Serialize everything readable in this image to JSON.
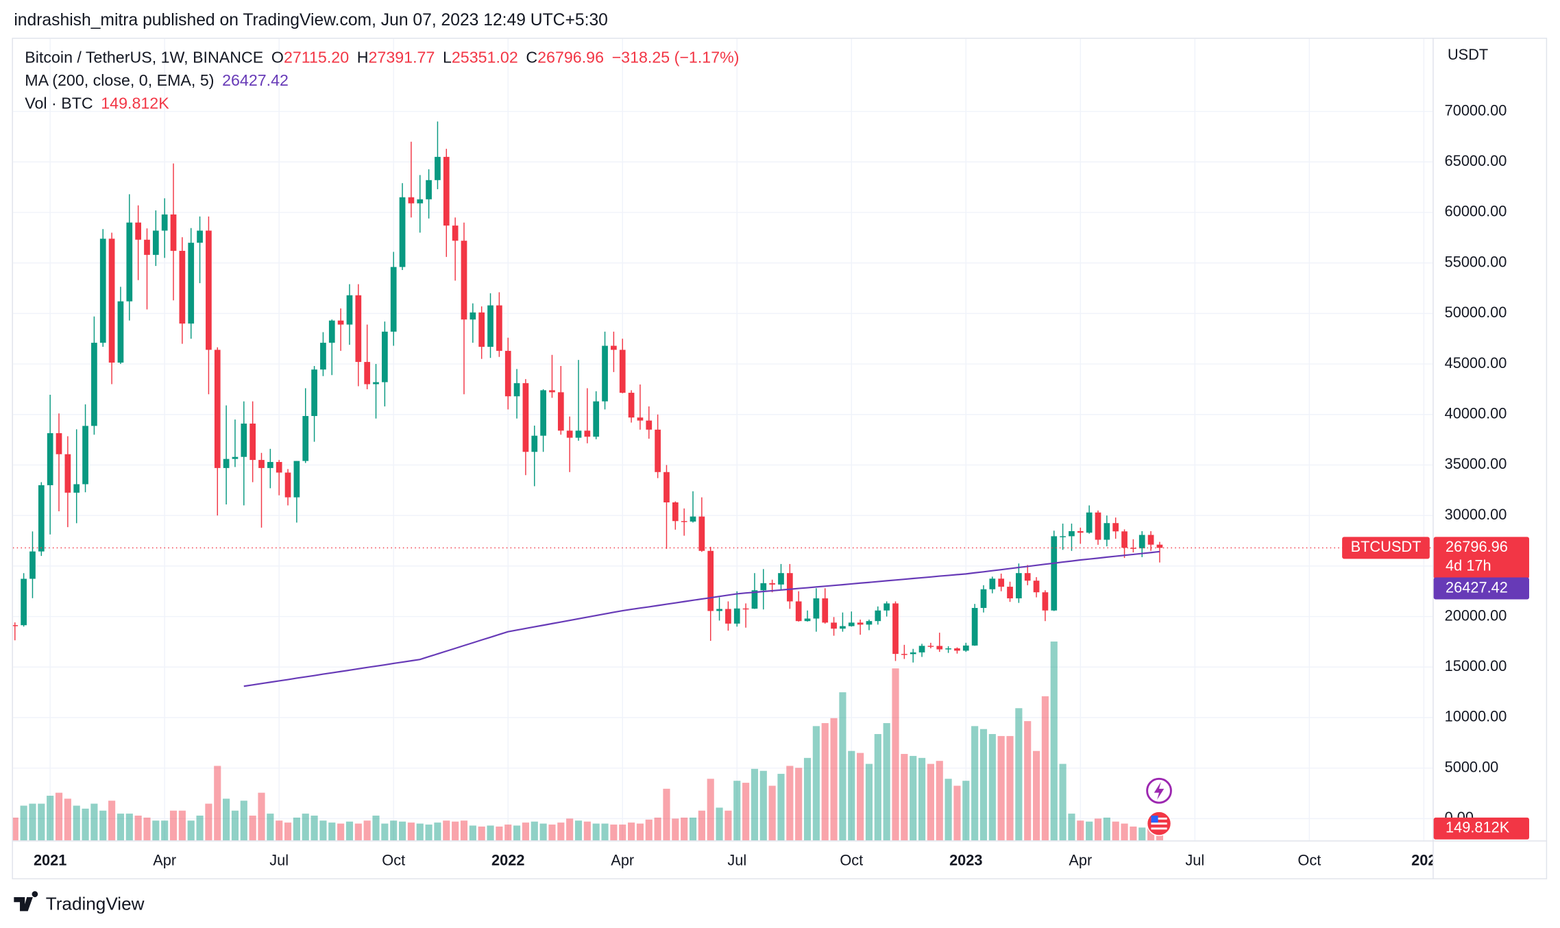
{
  "header": {
    "text": "indrashish_mitra published on TradingView.com, Jun 07, 2023 12:49 UTC+5:30"
  },
  "footer": {
    "brand": "TradingView"
  },
  "chart_data": {
    "type": "candlestick",
    "symbol": "Bitcoin / TetherUS, 1W, BINANCE",
    "legend_keys": [
      "O",
      "H",
      "L",
      "C"
    ],
    "ohlc_value_labels": [
      "27115.20",
      "27391.77",
      "25351.02",
      "26796.96"
    ],
    "change": "−318.25 (−1.17%)",
    "unit": "USDT",
    "symbol_tag": "BTCUSDT",
    "countdown": "4d 17h",
    "up_color": "#089981",
    "down_color": "#f23645",
    "grid": true,
    "open": [
      19147,
      19142,
      23735,
      26443,
      33000,
      38150,
      36069,
      32260,
      33100,
      38870,
      47100,
      57400,
      45135,
      51200,
      59000,
      57300,
      55800,
      58200,
      59800,
      56200,
      49000,
      57000,
      58200,
      46400,
      34700,
      35600,
      35800,
      39100,
      35500,
      34700,
      35300,
      34250,
      31800,
      35400,
      39850,
      44450,
      47100,
      49300,
      48900,
      51800,
      45200,
      43000,
      43200,
      48200,
      54600,
      61500,
      60900,
      61300,
      63200,
      65500,
      58700,
      57200,
      49400,
      50100,
      46700,
      50800,
      46300,
      41800,
      43100,
      36300,
      37900,
      42400,
      42200,
      38400,
      37700,
      38400,
      37800,
      41300,
      46800,
      46400,
      42150,
      39700,
      39400,
      38500,
      34300,
      31300,
      29450,
      29400,
      29900,
      26500,
      20550,
      20750,
      19300,
      20800,
      20780,
      22600,
      23300,
      23170,
      24300,
      21500,
      19550,
      19800,
      21800,
      19400,
      18800,
      19050,
      19400,
      19200,
      19550,
      20600,
      21300,
      16300,
      16280,
      16450,
      17100,
      17090,
      16750,
      16850,
      16620,
      17130,
      20850,
      22700,
      23750,
      22950,
      21800,
      24300,
      23550,
      22400,
      20600,
      27950,
      27950,
      28450,
      28300,
      30300,
      27600,
      29250,
      28430,
      26800,
      26750,
      28080,
      27115.2
    ],
    "high": [
      19420,
      24295,
      28422,
      33300,
      41950,
      40100,
      37850,
      38530,
      41000,
      49700,
      58350,
      58000,
      52640,
      61800,
      60700,
      58420,
      60200,
      61400,
      64850,
      57550,
      58450,
      59600,
      59600,
      46650,
      40900,
      39500,
      41300,
      41300,
      36200,
      36600,
      35500,
      34600,
      35400,
      42600,
      44800,
      48150,
      49400,
      50500,
      52900,
      52900,
      48900,
      45000,
      49200,
      56100,
      62900,
      67000,
      63700,
      64270,
      69000,
      66300,
      59500,
      59000,
      51000,
      50700,
      52000,
      52100,
      47600,
      44500,
      43500,
      38900,
      42500,
      45900,
      44800,
      39800,
      45400,
      42600,
      42300,
      48200,
      48200,
      47500,
      42400,
      42970,
      40800,
      40000,
      35000,
      31400,
      30700,
      32400,
      31800,
      26900,
      21900,
      21500,
      22500,
      21300,
      24300,
      24700,
      23650,
      25200,
      25200,
      22500,
      20600,
      22800,
      22800,
      19950,
      20400,
      20500,
      19700,
      19700,
      21000,
      21500,
      21500,
      17200,
      16800,
      17300,
      17400,
      18400,
      17060,
      16950,
      17400,
      21250,
      23100,
      23950,
      24250,
      23450,
      25250,
      25100,
      23900,
      22600,
      28500,
      29200,
      29200,
      28800,
      31000,
      30500,
      30000,
      29800,
      28630,
      27650,
      28450,
      28450,
      27391.77
    ],
    "low": [
      17650,
      19000,
      21815,
      26000,
      28130,
      30420,
      28850,
      29240,
      32300,
      38000,
      46700,
      43000,
      45000,
      49300,
      53300,
      50400,
      54700,
      55500,
      51300,
      47000,
      47500,
      53000,
      42000,
      30000,
      31100,
      34800,
      31000,
      33300,
      28800,
      32700,
      32000,
      31000,
      29300,
      35200,
      37300,
      43800,
      43900,
      46300,
      46900,
      42800,
      42500,
      39600,
      40800,
      46800,
      54300,
      59500,
      58000,
      59400,
      62300,
      55600,
      53250,
      42000,
      47100,
      45500,
      45600,
      45700,
      40500,
      39600,
      34000,
      32900,
      36300,
      41650,
      38000,
      34300,
      37400,
      37150,
      37550,
      40500,
      44200,
      42100,
      39200,
      38500,
      37600,
      33700,
      26700,
      28600,
      28000,
      29300,
      26400,
      17600,
      19600,
      18600,
      19000,
      18900,
      20750,
      20700,
      22400,
      22650,
      20760,
      19500,
      19500,
      18500,
      19300,
      18100,
      18500,
      19000,
      18200,
      18650,
      19200,
      20000,
      15600,
      15800,
      15450,
      16000,
      16850,
      16500,
      16400,
      16330,
      16500,
      17100,
      20400,
      22300,
      22500,
      21450,
      21350,
      23100,
      21900,
      19550,
      20550,
      26600,
      26500,
      27200,
      28200,
      27100,
      26950,
      27700,
      25800,
      26350,
      25880,
      26500,
      25351.02
    ],
    "close": [
      19142,
      23735,
      26443,
      33000,
      38150,
      36069,
      32260,
      33100,
      38870,
      47100,
      57400,
      45135,
      51200,
      59000,
      57300,
      55800,
      58200,
      59800,
      56200,
      49000,
      57000,
      58200,
      46400,
      34700,
      35600,
      35800,
      39100,
      35500,
      34700,
      35300,
      34250,
      31800,
      35400,
      39850,
      44450,
      47100,
      49300,
      48900,
      51800,
      45200,
      43000,
      43200,
      48200,
      54600,
      61500,
      60900,
      61300,
      63200,
      65500,
      58700,
      57200,
      49400,
      50100,
      46700,
      50800,
      46300,
      41800,
      43100,
      36300,
      37900,
      42400,
      42200,
      38400,
      37700,
      38400,
      37800,
      41300,
      46800,
      46400,
      42150,
      39700,
      39400,
      38500,
      34300,
      31300,
      29450,
      29400,
      29900,
      26500,
      20550,
      20750,
      19300,
      20800,
      20780,
      22600,
      23300,
      23170,
      24300,
      21500,
      19550,
      19800,
      21800,
      19400,
      18800,
      19050,
      19400,
      19200,
      19550,
      20600,
      21300,
      16300,
      16280,
      16450,
      17100,
      17090,
      16750,
      16850,
      16620,
      17130,
      20850,
      22700,
      23750,
      22950,
      21800,
      24300,
      23550,
      22400,
      20600,
      27950,
      27950,
      28450,
      28300,
      30300,
      27600,
      29250,
      28430,
      26800,
      26750,
      28080,
      27115.2,
      26796.96
    ],
    "ma": {
      "name": "MA (200, close, 0, EMA, 5)",
      "color": "#673ab7",
      "values": [
        null,
        null,
        null,
        null,
        null,
        null,
        null,
        null,
        null,
        null,
        null,
        null,
        null,
        null,
        null,
        null,
        null,
        null,
        null,
        null,
        null,
        null,
        null,
        null,
        null,
        null,
        13100,
        13230,
        13370,
        13500,
        13630,
        13760,
        13900,
        14030,
        14160,
        14300,
        14430,
        14560,
        14690,
        14830,
        14960,
        15090,
        15220,
        15360,
        15490,
        15620,
        15750,
        16030,
        16300,
        16580,
        16850,
        17130,
        17400,
        17680,
        17950,
        18230,
        18500,
        18660,
        18820,
        18980,
        19140,
        19300,
        19460,
        19620,
        19780,
        19940,
        20100,
        20260,
        20420,
        20580,
        20710,
        20840,
        20960,
        21090,
        21220,
        21350,
        21480,
        21610,
        21740,
        21860,
        21990,
        22120,
        22250,
        22330,
        22400,
        22480,
        22550,
        22630,
        22700,
        22780,
        22850,
        22930,
        23000,
        23080,
        23150,
        23230,
        23310,
        23380,
        23460,
        23540,
        23610,
        23690,
        23770,
        23840,
        23920,
        24000,
        24070,
        24150,
        24220,
        24330,
        24430,
        24540,
        24640,
        24750,
        24860,
        24960,
        25070,
        25180,
        25280,
        25390,
        25490,
        25600,
        25690,
        25780,
        25880,
        25970,
        26060,
        26150,
        26240,
        26330,
        26427.42
      ]
    },
    "volume": {
      "name": "Vol · BTC",
      "last_value_label": "149.812K",
      "values": [
        264500,
        402500,
        425500,
        425500,
        517500,
        552000,
        483000,
        402500,
        368000,
        425500,
        345000,
        460000,
        310500,
        310500,
        287500,
        264500,
        230000,
        230000,
        345000,
        345000,
        230000,
        287500,
        425500,
        862500,
        483000,
        345000,
        460000,
        287500,
        552000,
        310500,
        230000,
        207000,
        264500,
        310500,
        287500,
        230000,
        207000,
        195500,
        218500,
        195500,
        230000,
        287500,
        195500,
        230000,
        218500,
        207000,
        195500,
        184000,
        207000,
        230000,
        218500,
        230000,
        172500,
        161000,
        172500,
        161000,
        184000,
        172500,
        207000,
        218500,
        195500,
        184000,
        207000,
        253000,
        230000,
        218500,
        195500,
        195500,
        184000,
        184000,
        207000,
        195500,
        241500,
        264500,
        598000,
        253000,
        264500,
        264500,
        345000,
        713000,
        379500,
        345000,
        690000,
        667000,
        828000,
        805000,
        632500,
        770500,
        862500,
        839500,
        954500,
        1322500,
        1357000,
        1414500,
        1713500,
        1035000,
        1012000,
        885500,
        1230500,
        1357000,
        1989500,
        1000500,
        977500,
        954500,
        885500,
        920000,
        713000,
        632500,
        690000,
        1322500,
        1288000,
        1230500,
        1207500,
        1207500,
        1529500,
        1380000,
        1035000,
        1667500,
        2300000,
        885500,
        310500,
        230000,
        218500,
        253000,
        264500,
        218500,
        195500,
        161000,
        149500,
        195500,
        149812
      ]
    },
    "xlim": [
      0,
      161
    ],
    "xticks": [
      {
        "value": 4,
        "label": "2021"
      },
      {
        "value": 17,
        "label": "Apr"
      },
      {
        "value": 30,
        "label": "Jul"
      },
      {
        "value": 43,
        "label": "Oct"
      },
      {
        "value": 56,
        "label": "2022"
      },
      {
        "value": 69,
        "label": "Apr"
      },
      {
        "value": 82,
        "label": "Jul"
      },
      {
        "value": 95,
        "label": "Oct"
      },
      {
        "value": 108,
        "label": "2023"
      },
      {
        "value": 121,
        "label": "Apr"
      },
      {
        "value": 134,
        "label": "Jul"
      },
      {
        "value": 147,
        "label": "Oct"
      },
      {
        "value": 160,
        "label": "202"
      }
    ],
    "ylim": [
      -2166,
      77090
    ],
    "yticks": [
      {
        "value": 0,
        "label": "0.00"
      },
      {
        "value": 5000,
        "label": "5000.00"
      },
      {
        "value": 10000,
        "label": "10000.00"
      },
      {
        "value": 15000,
        "label": "15000.00"
      },
      {
        "value": 20000,
        "label": "20000.00"
      },
      {
        "value": 25000,
        "label": "25000.00"
      },
      {
        "value": 30000,
        "label": "30000.00"
      },
      {
        "value": 35000,
        "label": "35000.00"
      },
      {
        "value": 40000,
        "label": "40000.00"
      },
      {
        "value": 45000,
        "label": "45000.00"
      },
      {
        "value": 50000,
        "label": "50000.00"
      },
      {
        "value": 55000,
        "label": "55000.00"
      },
      {
        "value": 60000,
        "label": "60000.00"
      },
      {
        "value": 65000,
        "label": "65000.00"
      },
      {
        "value": 70000,
        "label": "70000.00"
      }
    ]
  }
}
